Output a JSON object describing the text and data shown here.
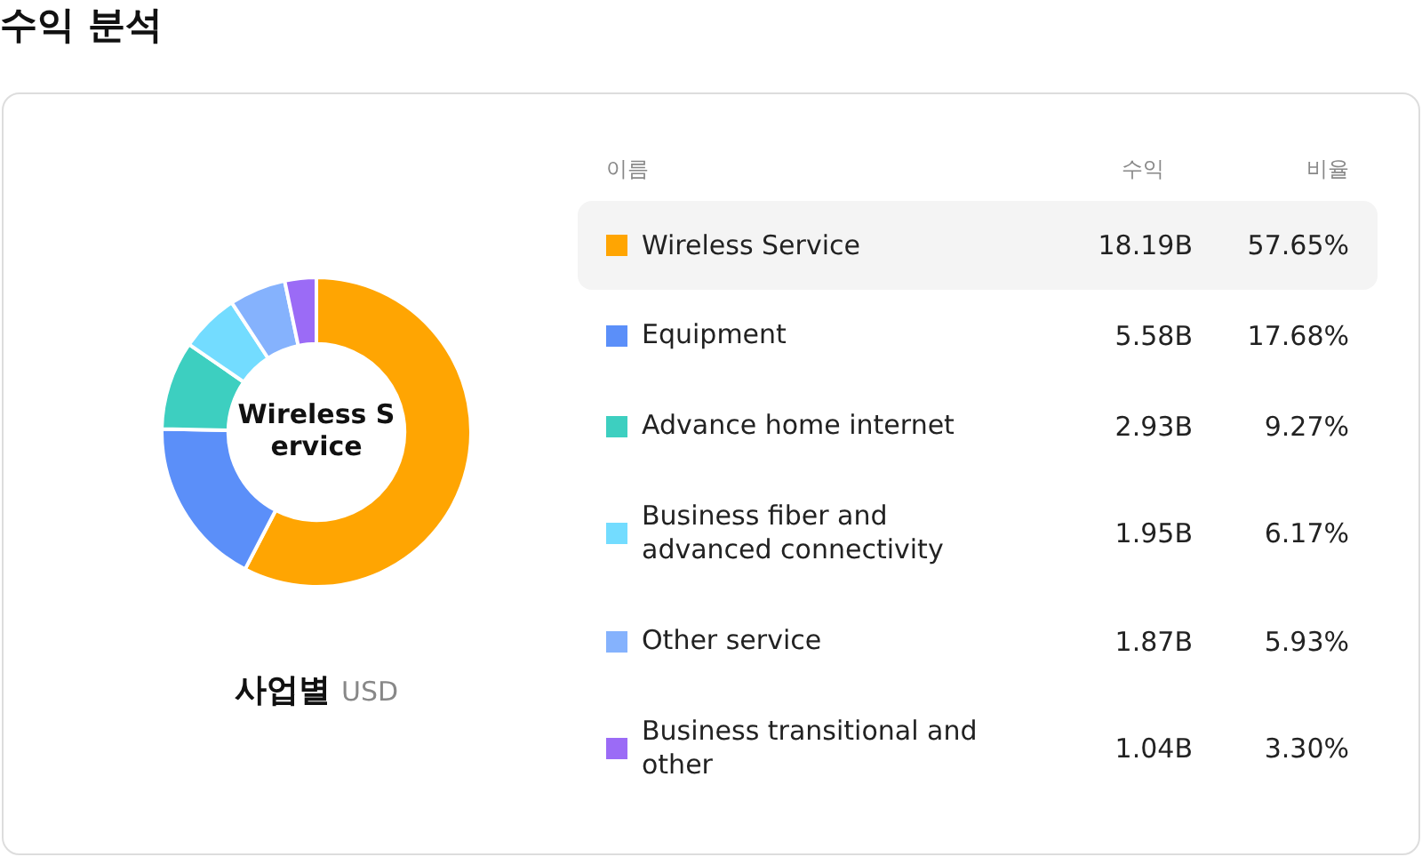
{
  "chart_data": {
    "type": "donut",
    "title": "수익 분석",
    "subtitle": "사업별",
    "legend_title": "이름",
    "legend": "right",
    "categories": [
      "Wireless Service",
      "Equipment",
      "Advance home internet",
      "Business fiber and advanced connectivity",
      "Other service",
      "Business transitional and other"
    ],
    "colors": [
      "#ffa502",
      "#5b8ff9",
      "#3dcfc0",
      "#73dcff",
      "#85b2fd",
      "#9b6bf6"
    ],
    "values": [
      18.19,
      5.58,
      2.93,
      1.95,
      1.87,
      1.04
    ],
    "value_labels": [
      "18.19B",
      "5.58B",
      "2.93B",
      "1.95B",
      "1.87B",
      "1.04B"
    ],
    "annotations": [
      "Wireless Service",
      "USD",
      "수익",
      "비율",
      {
        "text": "57.65%",
        "x": "Wireless Service"
      },
      {
        "text": "17.68%",
        "x": "Equipment"
      },
      {
        "text": "9.27%",
        "x": "Advance home internet"
      },
      {
        "text": "6.17%",
        "x": "Business fiber and advanced connectivity"
      },
      {
        "text": "5.93%",
        "x": "Other service"
      },
      {
        "text": "3.30%",
        "x": "Business transitional and other"
      }
    ]
  }
}
